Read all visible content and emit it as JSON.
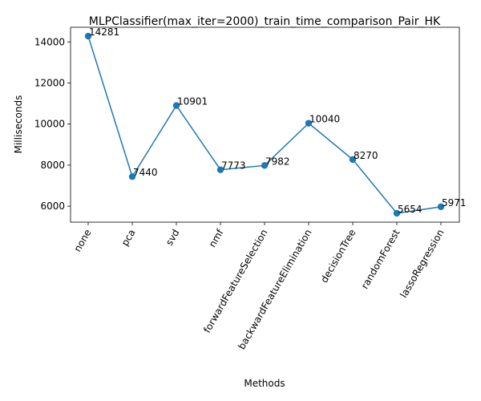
{
  "chart_data": {
    "type": "line",
    "title": "MLPClassifier(max_iter=2000)_train_time_comparison_Pair_HK",
    "xlabel": "Methods",
    "ylabel": "Milliseconds",
    "categories": [
      "none",
      "pca",
      "svd",
      "nmf",
      "forwardFeatureSelection",
      "backwardFeatureElimination",
      "decisionTree",
      "randomForest",
      "lassoRegression"
    ],
    "values": [
      14281,
      7440,
      10901,
      7773,
      7982,
      10040,
      8270,
      5654,
      5971
    ],
    "yticks": [
      6000,
      8000,
      10000,
      12000,
      14000
    ],
    "ylim": [
      5222,
      14713
    ],
    "line_color": "#1f77b4",
    "marker": "circle",
    "grid": false
  }
}
